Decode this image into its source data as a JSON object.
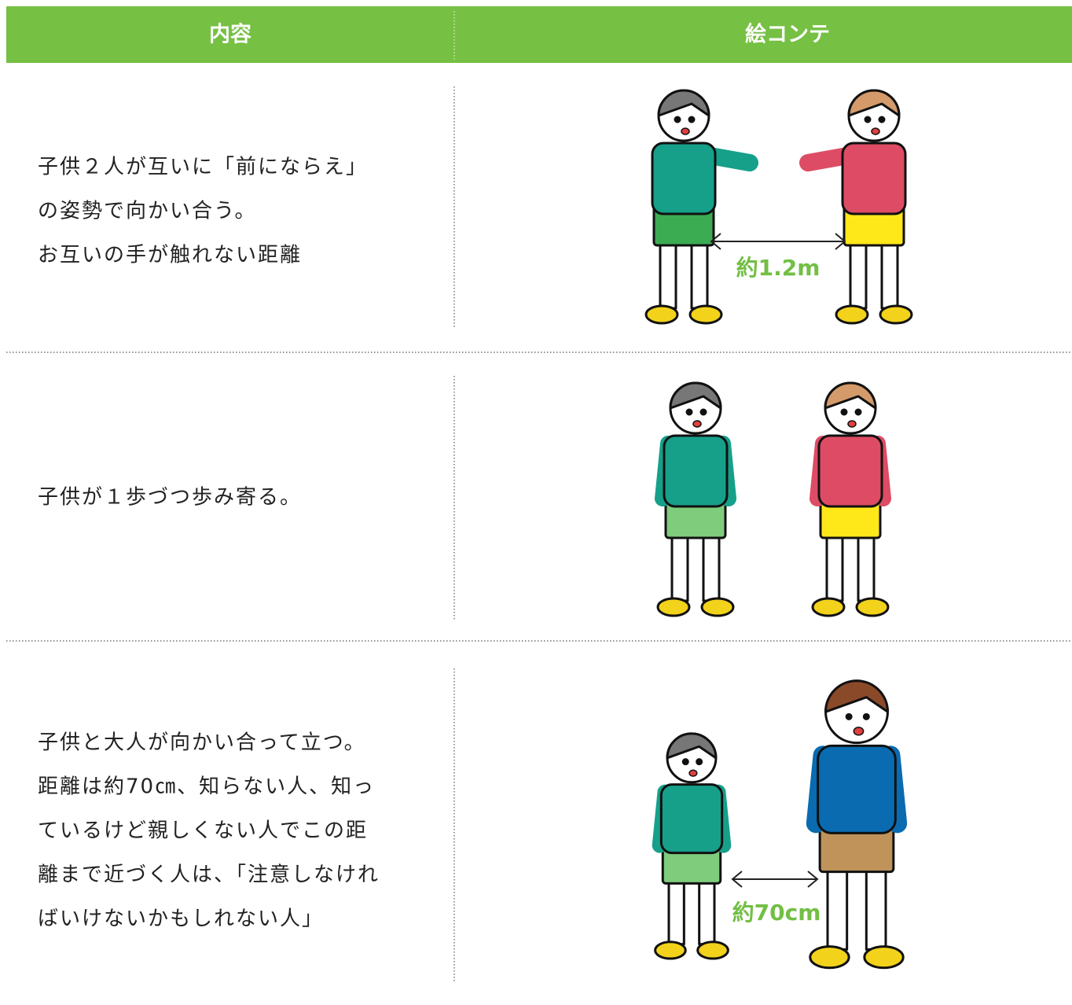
{
  "table": {
    "header": [
      "内容",
      "絵コンテ"
    ],
    "rows": [
      {
        "content": [
          "子供２人が互いに「前にならえ」",
          "の姿勢で向かい合う。",
          "お互いの手が触れない距離"
        ],
        "label": "約1.2m"
      },
      {
        "content": [
          "子供が１歩づつ歩み寄る。"
        ]
      },
      {
        "content": [
          "子供と大人が向かい合って立つ。",
          "距離は約70㎝、知らない人、知っ",
          "ているけど親しくない人でこの距",
          "離まで近づく人は、「注意しなけれ",
          "ばいけないかもしれない人」"
        ],
        "label": "約70cm"
      }
    ]
  }
}
